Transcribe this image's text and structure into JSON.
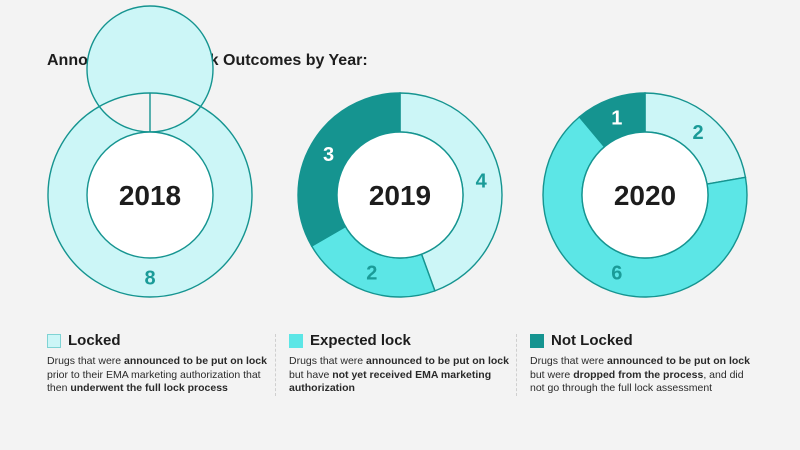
{
  "title": "Announced Drug Lock Outcomes by Year:",
  "colors": {
    "locked": "#ccf6f7",
    "expected": "#5ce6e6",
    "not_locked": "#159490",
    "number_on_dark": "#ffffff",
    "number_on_light": "#1a9b98",
    "center_text": "#1d1d1d",
    "background": "#f3f3f3"
  },
  "chart_data": [
    {
      "type": "pie",
      "title": "2018",
      "series": [
        {
          "name": "Locked",
          "value": 8
        },
        {
          "name": "Expected lock",
          "value": 0
        },
        {
          "name": "Not Locked",
          "value": 0
        }
      ]
    },
    {
      "type": "pie",
      "title": "2019",
      "series": [
        {
          "name": "Locked",
          "value": 4
        },
        {
          "name": "Expected lock",
          "value": 2
        },
        {
          "name": "Not Locked",
          "value": 3
        }
      ]
    },
    {
      "type": "pie",
      "title": "2020",
      "series": [
        {
          "name": "Locked",
          "value": 2
        },
        {
          "name": "Expected lock",
          "value": 6
        },
        {
          "name": "Not Locked",
          "value": 1
        }
      ]
    }
  ],
  "legend": [
    {
      "key": "locked",
      "label": "Locked",
      "desc": [
        {
          "t": "Drugs that were ",
          "b": false
        },
        {
          "t": "announced to be put on lock",
          "b": true
        },
        {
          "t": " prior to their EMA marketing authorization that then ",
          "b": false
        },
        {
          "t": "underwent the full lock process",
          "b": true
        }
      ]
    },
    {
      "key": "expected",
      "label": "Expected lock",
      "desc": [
        {
          "t": "Drugs that were ",
          "b": false
        },
        {
          "t": "announced to be put on lock",
          "b": true
        },
        {
          "t": " but have ",
          "b": false
        },
        {
          "t": "not yet received EMA marketing authorization",
          "b": true
        }
      ]
    },
    {
      "key": "not_locked",
      "label": "Not Locked",
      "desc": [
        {
          "t": "Drugs that were ",
          "b": false
        },
        {
          "t": "announced to be put on lock",
          "b": true
        },
        {
          "t": " but were ",
          "b": false
        },
        {
          "t": "dropped from the process",
          "b": true
        },
        {
          "t": ", and did not go through the full lock assessment",
          "b": false
        }
      ]
    }
  ]
}
